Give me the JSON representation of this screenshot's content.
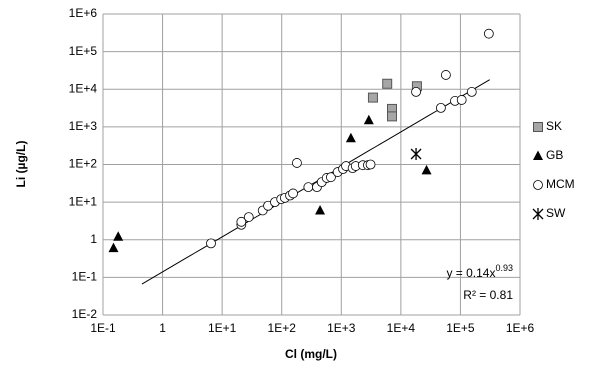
{
  "chart_data": {
    "type": "scatter",
    "x_label": "Cl (mg/L)",
    "y_label": "Li (µg/L)",
    "xscale": "log",
    "yscale": "log",
    "grid": true,
    "legend": "right",
    "xlim": [
      0.1,
      1000000
    ],
    "ylim": [
      0.01,
      1000000
    ],
    "xticks": [
      {
        "value": 0.1,
        "label": "1E-1"
      },
      1,
      {
        "value": 10,
        "label": "1E+1"
      },
      {
        "value": 100,
        "label": "1E+2"
      },
      {
        "value": 1000,
        "label": "1E+3"
      },
      {
        "value": 10000,
        "label": "1E+4"
      },
      {
        "value": 100000,
        "label": "1E+5"
      },
      {
        "value": 1000000,
        "label": "1E+6"
      }
    ],
    "yticks": [
      {
        "value": 0.01,
        "label": "1E-2"
      },
      {
        "value": 0.1,
        "label": "1E-1"
      },
      1,
      {
        "value": 10,
        "label": "1E+1"
      },
      {
        "value": 100,
        "label": "1E+2"
      },
      {
        "value": 1000,
        "label": "1E+3"
      },
      {
        "value": 10000,
        "label": "1E+4"
      },
      {
        "value": 100000,
        "label": "1E+5"
      },
      {
        "value": 1000000,
        "label": "1E+6"
      }
    ],
    "series": [
      {
        "name": "SK",
        "marker": "square",
        "color": "#a6a6a6",
        "x": [
          3400,
          5900,
          7100,
          7100,
          18600
        ],
        "values": [
          6000,
          14000,
          3000,
          1900,
          12000
        ]
      },
      {
        "name": "GB",
        "marker": "triangle",
        "color": "#000000",
        "x": [
          0.15,
          0.18,
          440,
          1450,
          2900,
          27000
        ],
        "values": [
          0.6,
          1.2,
          6,
          500,
          1500,
          70
        ]
      },
      {
        "name": "MCM",
        "marker": "circle",
        "color": "#ffffff",
        "x": [
          6.5,
          21,
          21,
          28,
          48,
          59,
          77,
          98,
          113,
          138,
          155,
          180,
          280,
          390,
          470,
          570,
          670,
          870,
          1070,
          1200,
          1550,
          1750,
          2300,
          2800,
          3100,
          18000,
          47000,
          57000,
          81000,
          105000,
          155000,
          300000
        ],
        "values": [
          0.8,
          2.5,
          3,
          4,
          6,
          8,
          10,
          12,
          13,
          15,
          17,
          110,
          25,
          25,
          34,
          44,
          46,
          63,
          76,
          91,
          80,
          91,
          96,
          96,
          100,
          8500,
          3200,
          24000,
          4900,
          5200,
          8500,
          300000
        ]
      },
      {
        "name": "SW",
        "marker": "star",
        "color": "#000000",
        "x": [
          18000
        ],
        "values": [
          190
        ]
      }
    ],
    "trendline": {
      "a": 0.14,
      "b": 0.93,
      "x": [
        0.45,
        310000
      ]
    },
    "annotations": [
      {
        "text": "y = 0.14x",
        "sup": "0.93"
      },
      {
        "text": "R² = 0.81"
      }
    ]
  }
}
